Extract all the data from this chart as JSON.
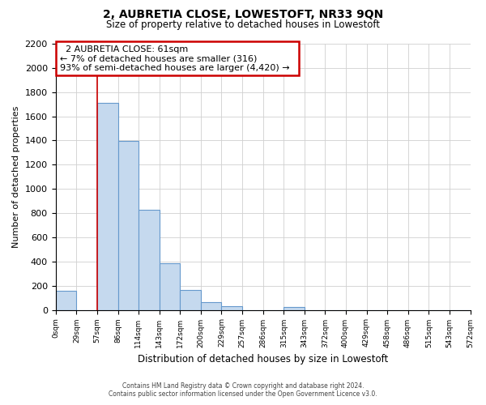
{
  "title": "2, AUBRETIA CLOSE, LOWESTOFT, NR33 9QN",
  "subtitle": "Size of property relative to detached houses in Lowestoft",
  "xlabel": "Distribution of detached houses by size in Lowestoft",
  "ylabel": "Number of detached properties",
  "bar_edges": [
    0,
    29,
    57,
    86,
    114,
    143,
    172,
    200,
    229,
    257,
    286,
    315,
    343,
    372,
    400,
    429,
    458,
    486,
    515,
    543,
    572
  ],
  "bar_heights": [
    160,
    0,
    1710,
    1395,
    825,
    385,
    165,
    65,
    30,
    0,
    0,
    25,
    0,
    0,
    0,
    0,
    0,
    0,
    0,
    0
  ],
  "tick_labels": [
    "0sqm",
    "29sqm",
    "57sqm",
    "86sqm",
    "114sqm",
    "143sqm",
    "172sqm",
    "200sqm",
    "229sqm",
    "257sqm",
    "286sqm",
    "315sqm",
    "343sqm",
    "372sqm",
    "400sqm",
    "429sqm",
    "458sqm",
    "486sqm",
    "515sqm",
    "543sqm",
    "572sqm"
  ],
  "bar_fill_color": "#c5d9ee",
  "bar_edge_color": "#6699cc",
  "property_line_x": 57,
  "property_line_color": "#cc0000",
  "annotation_title": "2 AUBRETIA CLOSE: 61sqm",
  "annotation_line1": "← 7% of detached houses are smaller (316)",
  "annotation_line2": "93% of semi-detached houses are larger (4,420) →",
  "annotation_box_color": "#ffffff",
  "annotation_box_edge_color": "#cc0000",
  "ylim": [
    0,
    2200
  ],
  "yticks": [
    0,
    200,
    400,
    600,
    800,
    1000,
    1200,
    1400,
    1600,
    1800,
    2000,
    2200
  ],
  "grid_color": "#d0d0d0",
  "background_color": "#ffffff",
  "footer_line1": "Contains HM Land Registry data © Crown copyright and database right 2024.",
  "footer_line2": "Contains public sector information licensed under the Open Government Licence v3.0."
}
